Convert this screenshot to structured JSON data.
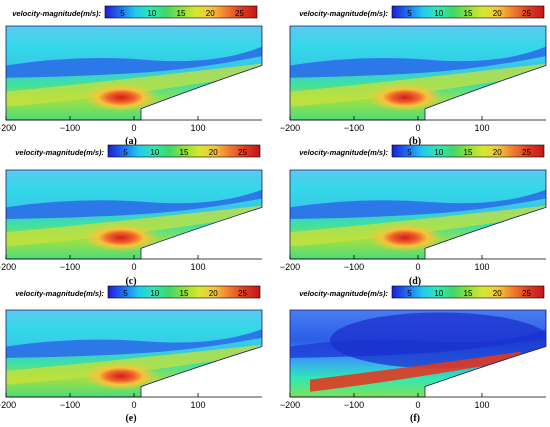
{
  "colorbar": {
    "title": "velocity-magnitude(m/s):",
    "ticks": [
      "5",
      "10",
      "15",
      "20",
      "25"
    ],
    "tick_values": [
      5,
      10,
      15,
      20,
      25
    ],
    "range": [
      2,
      28
    ],
    "colormap": [
      "#1e1ed2",
      "#1e6ef0",
      "#22c8ee",
      "#2ee8b4",
      "#3ed86c",
      "#8fe03c",
      "#d7e631",
      "#f5c53a",
      "#ef7a2f",
      "#e03a21",
      "#c2161c"
    ]
  },
  "x_axis": {
    "ticks": [
      "−200",
      "−100",
      "0",
      "100"
    ],
    "tick_values": [
      -200,
      -100,
      0,
      100
    ],
    "range": [
      -200,
      200
    ]
  },
  "panels": [
    {
      "label": "(a)"
    },
    {
      "label": "(b)"
    },
    {
      "label": "(c)"
    },
    {
      "label": "(d)"
    },
    {
      "label": "(e)"
    },
    {
      "label": "(f)"
    }
  ]
}
